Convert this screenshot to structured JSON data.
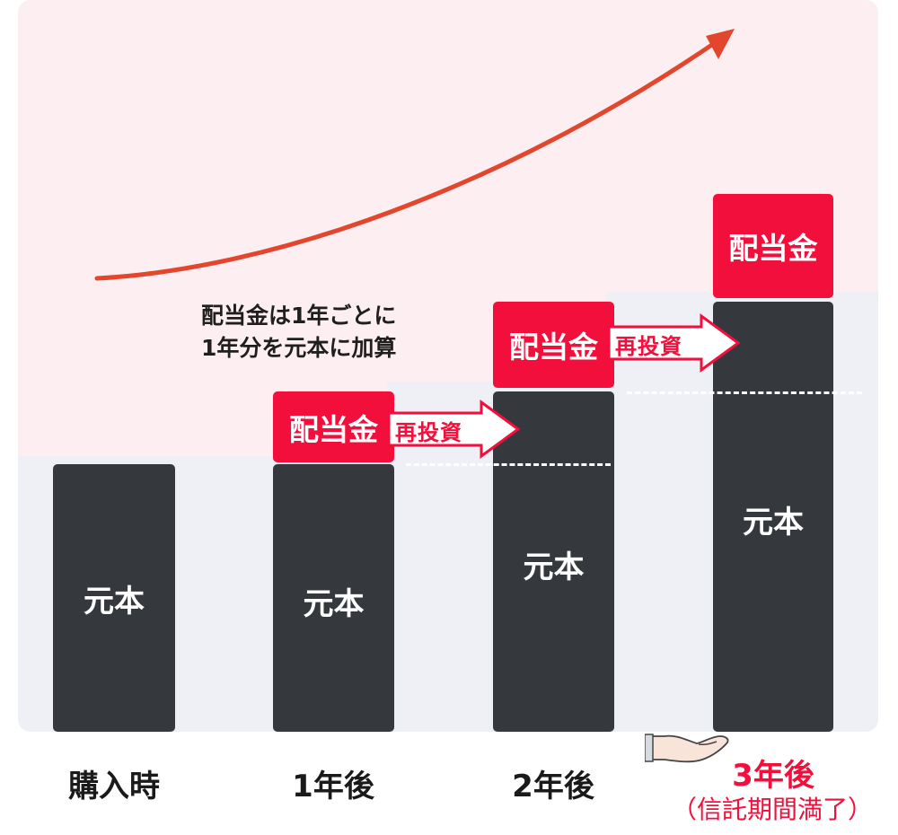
{
  "note": {
    "line1": "配当金は1年ごとに",
    "line2": "1年分を元本に加算"
  },
  "bars": [
    {
      "principal_label": "元本"
    },
    {
      "principal_label": "元本",
      "dividend_label": "配当金",
      "reinvest_label": "再投資"
    },
    {
      "principal_label": "元本",
      "dividend_label": "配当金",
      "reinvest_label": "再投資"
    },
    {
      "principal_label": "元本",
      "dividend_label": "配当金"
    }
  ],
  "x_labels": [
    "購入時",
    "1年後",
    "2年後",
    "3年後"
  ],
  "maturity_note": "（信託期間満了）",
  "colors": {
    "accent": "#f20f3c",
    "bar": "#35393e",
    "curve": "#e2472e",
    "pink_bg": "#fdeff1",
    "gray_bg": "#eff0f5"
  },
  "icons": [
    "growth-curve-arrow-icon",
    "open-hand-icon"
  ]
}
